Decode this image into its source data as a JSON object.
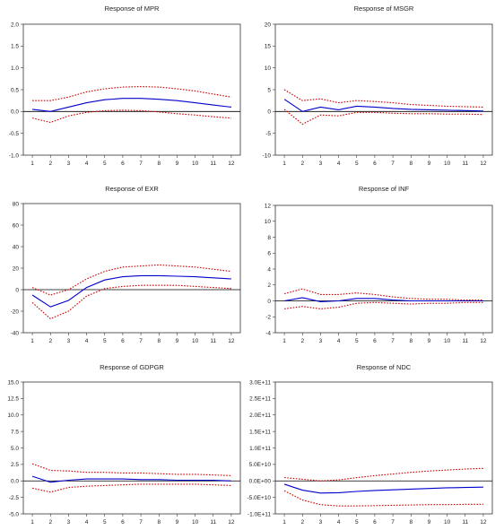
{
  "chart_data": [
    {
      "type": "line",
      "title": "Response of MPR",
      "categories": [
        "1",
        "2",
        "3",
        "4",
        "5",
        "6",
        "7",
        "8",
        "9",
        "10",
        "11",
        "12"
      ],
      "ylim": [
        -1.0,
        2.0
      ],
      "yticks": [
        "-1.0",
        "-0.5",
        "0.0",
        "0.5",
        "1.0",
        "1.5",
        "2.0"
      ],
      "yticks_values": [
        -1.0,
        -0.5,
        0.0,
        0.5,
        1.0,
        1.5,
        2.0
      ],
      "series": [
        {
          "role": "response",
          "color": "#0000cc",
          "style": "solid",
          "values": [
            0.05,
            0.0,
            0.1,
            0.2,
            0.27,
            0.3,
            0.3,
            0.28,
            0.25,
            0.2,
            0.15,
            0.1
          ]
        },
        {
          "role": "upper",
          "color": "#cc0000",
          "style": "dotted",
          "values": [
            0.25,
            0.25,
            0.33,
            0.45,
            0.52,
            0.56,
            0.57,
            0.56,
            0.52,
            0.47,
            0.4,
            0.33
          ]
        },
        {
          "role": "lower",
          "color": "#cc0000",
          "style": "dotted",
          "values": [
            -0.15,
            -0.25,
            -0.1,
            -0.02,
            0.02,
            0.03,
            0.02,
            -0.01,
            -0.05,
            -0.08,
            -0.12,
            -0.15
          ]
        }
      ]
    },
    {
      "type": "line",
      "title": "Response of MSGR",
      "categories": [
        "1",
        "2",
        "3",
        "4",
        "5",
        "6",
        "7",
        "8",
        "9",
        "10",
        "11",
        "12"
      ],
      "ylim": [
        -10,
        20
      ],
      "yticks": [
        "-10",
        "-5",
        "0",
        "5",
        "10",
        "15",
        "20"
      ],
      "yticks_values": [
        -10,
        -5,
        0,
        5,
        10,
        15,
        20
      ],
      "series": [
        {
          "role": "response",
          "color": "#0000cc",
          "style": "solid",
          "values": [
            2.8,
            0.0,
            1.0,
            0.4,
            1.2,
            1.0,
            0.7,
            0.5,
            0.4,
            0.3,
            0.2,
            0.1
          ]
        },
        {
          "role": "upper",
          "color": "#cc0000",
          "style": "dotted",
          "values": [
            5.0,
            2.5,
            2.9,
            2.0,
            2.5,
            2.3,
            2.0,
            1.6,
            1.4,
            1.2,
            1.1,
            1.0
          ]
        },
        {
          "role": "lower",
          "color": "#cc0000",
          "style": "dotted",
          "values": [
            0.5,
            -2.9,
            -0.8,
            -1.0,
            -0.2,
            -0.2,
            -0.4,
            -0.5,
            -0.5,
            -0.6,
            -0.6,
            -0.7
          ]
        }
      ]
    },
    {
      "type": "line",
      "title": "Response of EXR",
      "categories": [
        "1",
        "2",
        "3",
        "4",
        "5",
        "6",
        "7",
        "8",
        "9",
        "10",
        "11",
        "12"
      ],
      "ylim": [
        -40,
        80
      ],
      "yticks": [
        "-40",
        "-20",
        "0",
        "20",
        "40",
        "60",
        "80"
      ],
      "yticks_values": [
        -40,
        -20,
        0,
        20,
        40,
        60,
        80
      ],
      "series": [
        {
          "role": "response",
          "color": "#0000cc",
          "style": "solid",
          "values": [
            -5,
            -16,
            -10,
            2,
            9,
            12,
            13,
            13,
            12.5,
            12,
            11,
            10
          ]
        },
        {
          "role": "upper",
          "color": "#cc0000",
          "style": "dotted",
          "values": [
            2,
            -5,
            0,
            10,
            17,
            21,
            22,
            23,
            22,
            21,
            19,
            17
          ]
        },
        {
          "role": "lower",
          "color": "#cc0000",
          "style": "dotted",
          "values": [
            -12,
            -27,
            -20,
            -6,
            1,
            3,
            4,
            4,
            4,
            3,
            2,
            1
          ]
        }
      ]
    },
    {
      "type": "line",
      "title": "Response of INF",
      "categories": [
        "1",
        "2",
        "3",
        "4",
        "5",
        "6",
        "7",
        "8",
        "9",
        "10",
        "11",
        "12"
      ],
      "ylim": [
        -4,
        12
      ],
      "yticks": [
        "-4",
        "-2",
        "0",
        "2",
        "4",
        "6",
        "8",
        "10",
        "12"
      ],
      "yticks_values": [
        -4,
        -2,
        0,
        2,
        4,
        6,
        8,
        10,
        12
      ],
      "series": [
        {
          "role": "response",
          "color": "#0000cc",
          "style": "solid",
          "values": [
            0.0,
            0.4,
            -0.1,
            0.0,
            0.3,
            0.3,
            0.1,
            0.0,
            0.0,
            0.0,
            0.0,
            0.0
          ]
        },
        {
          "role": "upper",
          "color": "#cc0000",
          "style": "dotted",
          "values": [
            0.9,
            1.5,
            0.8,
            0.8,
            1.0,
            0.8,
            0.5,
            0.3,
            0.2,
            0.2,
            0.1,
            0.1
          ]
        },
        {
          "role": "lower",
          "color": "#cc0000",
          "style": "dotted",
          "values": [
            -1.0,
            -0.7,
            -1.0,
            -0.8,
            -0.3,
            -0.2,
            -0.3,
            -0.4,
            -0.3,
            -0.3,
            -0.2,
            -0.2
          ]
        }
      ]
    },
    {
      "type": "line",
      "title": "Response of GDPGR",
      "categories": [
        "1",
        "2",
        "3",
        "4",
        "5",
        "6",
        "7",
        "8",
        "9",
        "10",
        "11",
        "12"
      ],
      "ylim": [
        -5.0,
        15.0
      ],
      "yticks": [
        "-5.0",
        "-2.5",
        "0.0",
        "2.5",
        "5.0",
        "7.5",
        "10.0",
        "12.5",
        "15.0"
      ],
      "yticks_values": [
        -5.0,
        -2.5,
        0.0,
        2.5,
        5.0,
        7.5,
        10.0,
        12.5,
        15.0
      ],
      "series": [
        {
          "role": "response",
          "color": "#0000cc",
          "style": "solid",
          "values": [
            0.7,
            -0.2,
            0.1,
            0.3,
            0.3,
            0.3,
            0.2,
            0.2,
            0.1,
            0.1,
            0.1,
            0.0
          ]
        },
        {
          "role": "upper",
          "color": "#cc0000",
          "style": "dotted",
          "values": [
            2.6,
            1.6,
            1.5,
            1.3,
            1.3,
            1.2,
            1.2,
            1.1,
            1.0,
            1.0,
            0.9,
            0.8
          ]
        },
        {
          "role": "lower",
          "color": "#cc0000",
          "style": "dotted",
          "values": [
            -1.1,
            -1.7,
            -1.0,
            -0.8,
            -0.7,
            -0.6,
            -0.5,
            -0.5,
            -0.5,
            -0.5,
            -0.6,
            -0.7
          ]
        }
      ]
    },
    {
      "type": "line",
      "title": "Response of NDC",
      "categories": [
        "1",
        "2",
        "3",
        "4",
        "5",
        "6",
        "7",
        "8",
        "9",
        "10",
        "11",
        "12"
      ],
      "ylim": [
        -100000000000.0,
        300000000000.0
      ],
      "yticks": [
        "-1.0E+11",
        "-5.0E+10",
        "0.0E+00",
        "5.0E+10",
        "1.0E+11",
        "1.5E+11",
        "2.0E+11",
        "2.5E+11",
        "3.0E+11"
      ],
      "yticks_values": [
        -100000000000.0,
        -50000000000.0,
        0,
        50000000000.0,
        100000000000.0,
        150000000000.0,
        200000000000.0,
        250000000000.0,
        300000000000.0
      ],
      "series": [
        {
          "role": "response",
          "color": "#0000cc",
          "style": "solid",
          "values": [
            -10000000000.0,
            -28000000000.0,
            -37000000000.0,
            -36000000000.0,
            -32000000000.0,
            -29000000000.0,
            -27000000000.0,
            -25000000000.0,
            -23000000000.0,
            -21000000000.0,
            -20000000000.0,
            -19000000000.0
          ]
        },
        {
          "role": "upper",
          "color": "#cc0000",
          "style": "dotted",
          "values": [
            10000000000.0,
            5000000000.0,
            0,
            3000000000.0,
            10000000000.0,
            16000000000.0,
            21000000000.0,
            26000000000.0,
            30000000000.0,
            33000000000.0,
            36000000000.0,
            38000000000.0
          ]
        },
        {
          "role": "lower",
          "color": "#cc0000",
          "style": "dotted",
          "values": [
            -30000000000.0,
            -58000000000.0,
            -72000000000.0,
            -76000000000.0,
            -76000000000.0,
            -75000000000.0,
            -74000000000.0,
            -73000000000.0,
            -72000000000.0,
            -72000000000.0,
            -71000000000.0,
            -71000000000.0
          ]
        }
      ]
    }
  ]
}
